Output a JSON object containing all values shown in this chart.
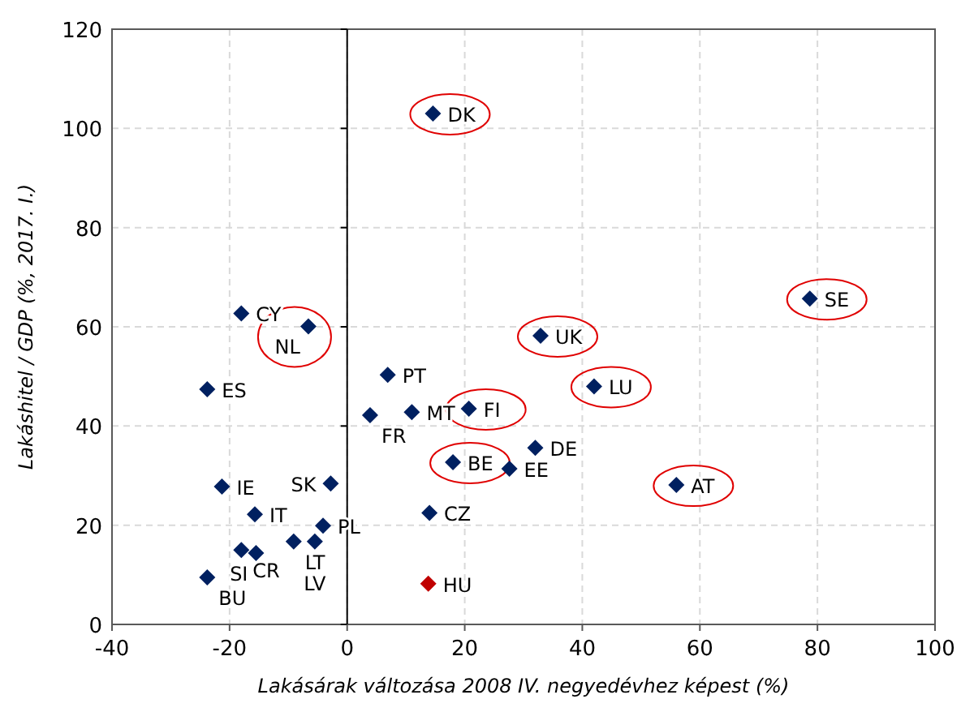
{
  "chart_data": {
    "type": "scatter",
    "xlabel": "Lakásárak változása 2008 IV. negyedévhez képest (%)",
    "ylabel": "Lakáshitel / GDP (%, 2017. I.)",
    "xlim": [
      -40,
      100
    ],
    "xticks": [
      -40,
      -20,
      0,
      20,
      40,
      60,
      80,
      100
    ],
    "ylim": [
      0,
      120
    ],
    "yticks": [
      0,
      20,
      40,
      60,
      80,
      100,
      120
    ],
    "grid": true,
    "marker": "diamond",
    "ref_lines": [
      {
        "axis": "x",
        "value": 0,
        "color": "#000000"
      }
    ],
    "series": [
      {
        "color": "#002060",
        "x": [
          -18,
          -23.8,
          6.9,
          3.9,
          11,
          27.6,
          32,
          -21.3,
          -15.7,
          -2.8,
          -4.1,
          14,
          -18,
          -15.5,
          -9.1,
          -5.5,
          -23.8
        ],
        "values": [
          62.7,
          47.4,
          50.3,
          42.2,
          42.8,
          31.4,
          35.6,
          27.8,
          22.2,
          28.4,
          19.9,
          22.5,
          15,
          14.4,
          16.7,
          16.7,
          9.5
        ]
      },
      {
        "color": "#002060",
        "x": [
          14.6,
          -6.6,
          20.7,
          18,
          32.9,
          42,
          78.7,
          56
        ],
        "values": [
          103,
          60.1,
          43.5,
          32.7,
          58.2,
          48,
          65.7,
          28.1
        ]
      },
      {
        "color": "#c00000",
        "x": [
          13.8
        ],
        "values": [
          8.2
        ]
      }
    ],
    "annotations": [
      {
        "text": "DK",
        "x": 14.6,
        "y": 103
      },
      {
        "text": "CY",
        "x": -18,
        "y": 62.7
      },
      {
        "text": "NL",
        "x": -6.6,
        "y": 60.1
      },
      {
        "text": "ES",
        "x": -23.8,
        "y": 47.4
      },
      {
        "text": "PT",
        "x": 6.9,
        "y": 50.3
      },
      {
        "text": "FR",
        "x": 3.9,
        "y": 42.2
      },
      {
        "text": "MT",
        "x": 11,
        "y": 42.8
      },
      {
        "text": "FI",
        "x": 20.7,
        "y": 43.5
      },
      {
        "text": "BE",
        "x": 18,
        "y": 32.7
      },
      {
        "text": "EE",
        "x": 27.6,
        "y": 31.4
      },
      {
        "text": "DE",
        "x": 32,
        "y": 35.6
      },
      {
        "text": "UK",
        "x": 32.9,
        "y": 58.2
      },
      {
        "text": "LU",
        "x": 42,
        "y": 48
      },
      {
        "text": "SE",
        "x": 78.7,
        "y": 65.7
      },
      {
        "text": "AT",
        "x": 56,
        "y": 28.1
      },
      {
        "text": "IE",
        "x": -21.3,
        "y": 27.8
      },
      {
        "text": "IT",
        "x": -15.7,
        "y": 22.2
      },
      {
        "text": "SK",
        "x": -2.8,
        "y": 28.4
      },
      {
        "text": "PL",
        "x": -4.1,
        "y": 19.9
      },
      {
        "text": "CZ",
        "x": 14,
        "y": 22.5
      },
      {
        "text": "CR",
        "x": -18,
        "y": 15
      },
      {
        "text": "SI",
        "x": -15.5,
        "y": 14.4
      },
      {
        "text": "LT",
        "x": -9.1,
        "y": 16.7
      },
      {
        "text": "LV",
        "x": -5.5,
        "y": 16.7
      },
      {
        "text": "BU",
        "x": -23.8,
        "y": 9.5
      },
      {
        "text": "HU",
        "x": 13.8,
        "y": 8.2
      }
    ]
  }
}
